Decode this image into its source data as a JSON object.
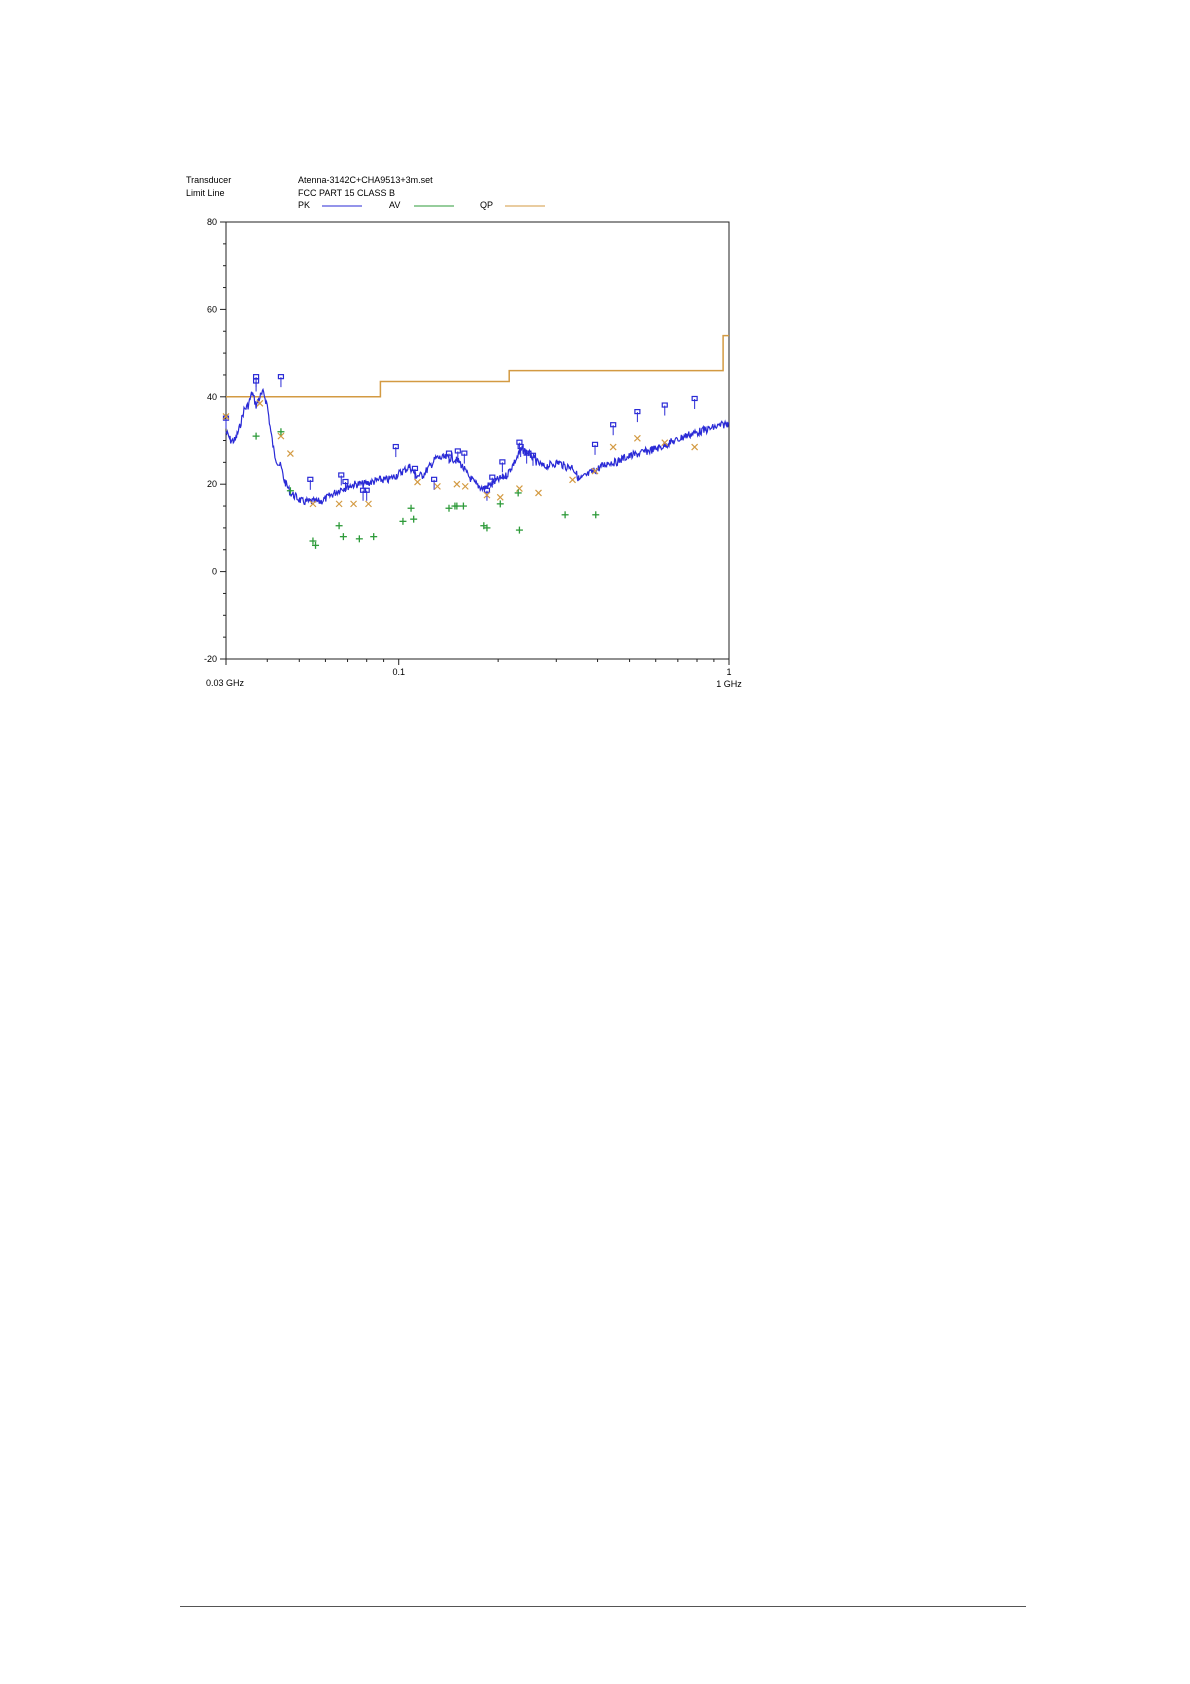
{
  "header": {
    "transducer_label": "Transducer",
    "transducer_value": "Atenna-3142C+CHA9513+3m.set",
    "limit_label": "Limit Line",
    "limit_value": "FCC PART 15 CLASS B"
  },
  "legend": [
    {
      "label": "PK",
      "color": "#2a2ad6"
    },
    {
      "label": "AV",
      "color": "#2e9b3a"
    },
    {
      "label": "QP",
      "color": "#d39a42"
    }
  ],
  "chart_data": {
    "type": "line",
    "title": "",
    "xlabel": "",
    "ylabel": "",
    "x_scale": "log",
    "xlim": [
      0.03,
      1
    ],
    "ylim": [
      -20,
      80
    ],
    "grid": false,
    "legend_position": "top",
    "y_ticks": [
      -20,
      0,
      20,
      40,
      60,
      80
    ],
    "y_tick_labels": [
      "-20",
      "0",
      "20",
      "40",
      "60",
      "80"
    ],
    "x_ticks": [
      0.03,
      0.1,
      1
    ],
    "x_tick_labels": [
      "0.03 GHz",
      "0.1",
      "1 GHz"
    ],
    "x_tick_labels_secondary": [
      "",
      "",
      "1"
    ],
    "series": [
      {
        "name": "FCC PART 15 CLASS B",
        "kind": "limit",
        "color": "#d39a42",
        "x": [
          0.03,
          0.088,
          0.088,
          0.216,
          0.216,
          0.96,
          0.96,
          1.0
        ],
        "y": [
          40,
          40,
          43.5,
          43.5,
          46,
          46,
          54,
          54
        ]
      },
      {
        "name": "PK",
        "kind": "trace",
        "color": "#2a2ad6",
        "x": [
          0.03,
          0.031,
          0.032,
          0.033,
          0.034,
          0.035,
          0.036,
          0.037,
          0.038,
          0.039,
          0.04,
          0.041,
          0.042,
          0.043,
          0.044,
          0.045,
          0.047,
          0.049,
          0.051,
          0.053,
          0.055,
          0.058,
          0.061,
          0.064,
          0.067,
          0.07,
          0.074,
          0.078,
          0.083,
          0.088,
          0.093,
          0.098,
          0.103,
          0.108,
          0.113,
          0.118,
          0.124,
          0.13,
          0.137,
          0.145,
          0.153,
          0.162,
          0.171,
          0.18,
          0.19,
          0.2,
          0.212,
          0.224,
          0.236,
          0.249,
          0.262,
          0.275,
          0.29,
          0.305,
          0.32,
          0.336,
          0.352,
          0.37,
          0.39,
          0.41,
          0.432,
          0.455,
          0.48,
          0.506,
          0.533,
          0.562,
          0.592,
          0.624,
          0.658,
          0.694,
          0.731,
          0.77,
          0.812,
          0.856,
          0.902,
          0.951,
          1.0
        ],
        "y": [
          32,
          30,
          30,
          33,
          37,
          38,
          41,
          38,
          40,
          41,
          38,
          32,
          27,
          25,
          24,
          21,
          18,
          17,
          16,
          16,
          16,
          16,
          17,
          18,
          19,
          19.5,
          20,
          20,
          20.5,
          21,
          21,
          22,
          23,
          24,
          22,
          22,
          24,
          26,
          26,
          26,
          25,
          22,
          20,
          19,
          20,
          21,
          22,
          25,
          28,
          27,
          25,
          24,
          24.5,
          25,
          24,
          24,
          21,
          22,
          23,
          24,
          25,
          25,
          26,
          26.5,
          27,
          27.5,
          28,
          28.5,
          29.5,
          30,
          31,
          31.5,
          32,
          32.5,
          33,
          33.5,
          34
        ]
      }
    ],
    "pk_markers": {
      "name": "PK",
      "color": "#2a2ad6",
      "points": [
        [
          0.03,
          35
        ],
        [
          0.037,
          44.5
        ],
        [
          0.037,
          43.5
        ],
        [
          0.044,
          44.5
        ],
        [
          0.054,
          21
        ],
        [
          0.067,
          22
        ],
        [
          0.069,
          20.5
        ],
        [
          0.078,
          18.5
        ],
        [
          0.08,
          18.5
        ],
        [
          0.098,
          28.5
        ],
        [
          0.112,
          23.5
        ],
        [
          0.128,
          21
        ],
        [
          0.142,
          27
        ],
        [
          0.151,
          27.5
        ],
        [
          0.158,
          27
        ],
        [
          0.185,
          18.5
        ],
        [
          0.192,
          21.5
        ],
        [
          0.206,
          25
        ],
        [
          0.232,
          29.5
        ],
        [
          0.234,
          28.5
        ],
        [
          0.244,
          27
        ],
        [
          0.255,
          26.5
        ],
        [
          0.393,
          29
        ],
        [
          0.446,
          33.5
        ],
        [
          0.528,
          36.5
        ],
        [
          0.639,
          38
        ],
        [
          0.787,
          39.5
        ]
      ]
    },
    "qp_markers": {
      "name": "QP",
      "color": "#d39a42",
      "points": [
        [
          0.03,
          35.5
        ],
        [
          0.038,
          38.5
        ],
        [
          0.044,
          31
        ],
        [
          0.047,
          27
        ],
        [
          0.055,
          15.5
        ],
        [
          0.066,
          15.5
        ],
        [
          0.073,
          15.5
        ],
        [
          0.081,
          15.5
        ],
        [
          0.114,
          20.5
        ],
        [
          0.131,
          19.5
        ],
        [
          0.15,
          20
        ],
        [
          0.159,
          19.5
        ],
        [
          0.185,
          17.5
        ],
        [
          0.203,
          17
        ],
        [
          0.232,
          19
        ],
        [
          0.265,
          18
        ],
        [
          0.336,
          21
        ],
        [
          0.393,
          23
        ],
        [
          0.446,
          28.5
        ],
        [
          0.528,
          30.5
        ],
        [
          0.639,
          29.5
        ],
        [
          0.787,
          28.5
        ]
      ]
    },
    "av_markers": {
      "name": "AV",
      "color": "#2e9b3a",
      "points": [
        [
          0.037,
          31
        ],
        [
          0.044,
          32
        ],
        [
          0.047,
          18.5
        ],
        [
          0.055,
          7
        ],
        [
          0.056,
          6
        ],
        [
          0.066,
          10.5
        ],
        [
          0.068,
          8
        ],
        [
          0.076,
          7.5
        ],
        [
          0.084,
          8
        ],
        [
          0.103,
          11.5
        ],
        [
          0.109,
          14.5
        ],
        [
          0.111,
          12
        ],
        [
          0.142,
          14.5
        ],
        [
          0.148,
          15
        ],
        [
          0.15,
          15
        ],
        [
          0.157,
          15
        ],
        [
          0.181,
          10.5
        ],
        [
          0.185,
          10
        ],
        [
          0.203,
          15.5
        ],
        [
          0.232,
          9.5
        ],
        [
          0.23,
          18
        ],
        [
          0.319,
          13
        ],
        [
          0.395,
          13
        ]
      ]
    }
  }
}
